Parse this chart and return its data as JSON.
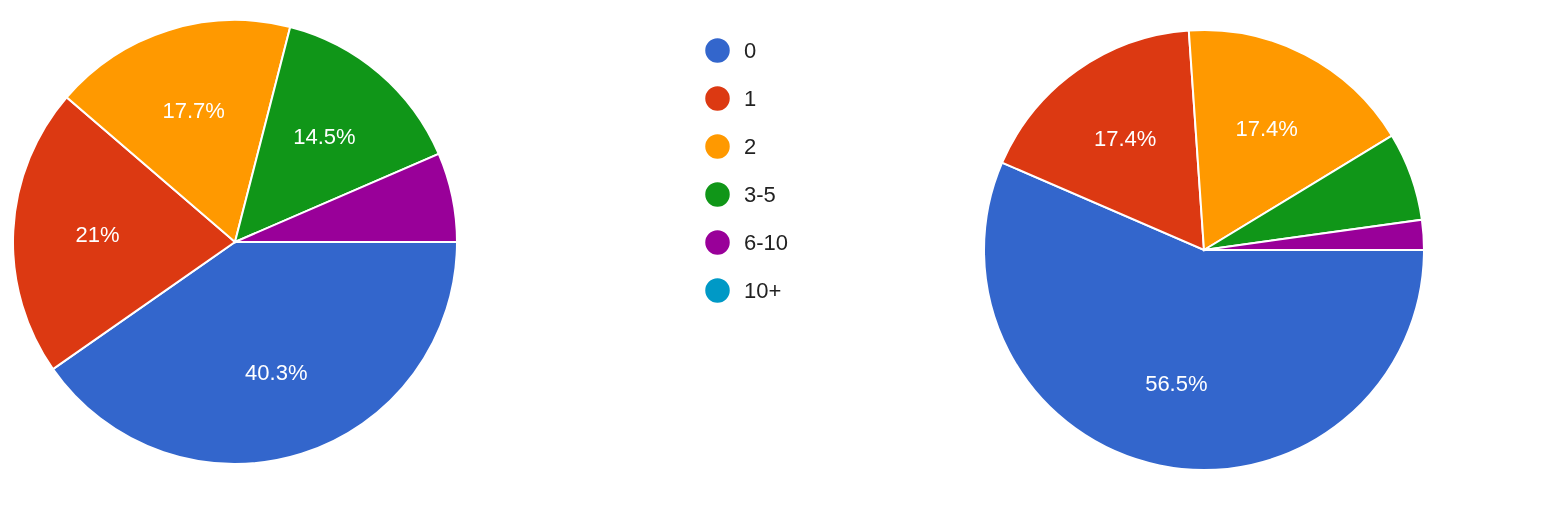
{
  "chart_data": [
    {
      "type": "pie",
      "categories": [
        "0",
        "1",
        "2",
        "3-5",
        "6-10",
        "10+"
      ],
      "values": [
        40.3,
        21,
        17.7,
        14.5,
        6.5,
        0
      ],
      "colors": [
        "#3366cc",
        "#dc3912",
        "#ff9900",
        "#109618",
        "#990099",
        "#0099c6"
      ],
      "value_labels": [
        "40.3%",
        "21%",
        "17.7%",
        "14.5%",
        null,
        null
      ],
      "legend": "right"
    },
    {
      "type": "pie",
      "categories": [
        null,
        null,
        null,
        null,
        null,
        null
      ],
      "values": [
        56.5,
        17.4,
        17.4,
        6.5,
        2.2,
        0
      ],
      "colors": [
        "#3366cc",
        "#dc3912",
        "#ff9900",
        "#109618",
        "#990099",
        "#0099c6"
      ],
      "value_labels": [
        "56.5%",
        "17.4%",
        "17.4%",
        null,
        null,
        null
      ]
    }
  ]
}
